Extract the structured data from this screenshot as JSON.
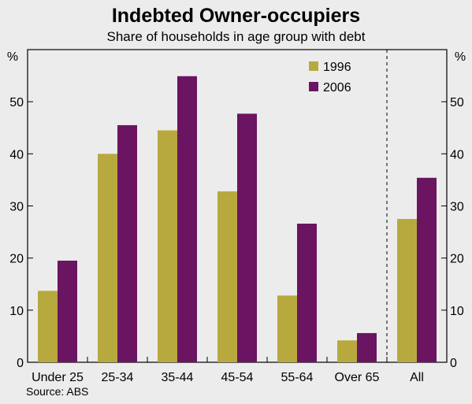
{
  "chart_data": {
    "type": "bar",
    "title": "Indebted Owner-occupiers",
    "subtitle": "Share of households in age group with debt",
    "y_unit_left": "%",
    "y_unit_right": "%",
    "ylim": [
      0,
      60
    ],
    "yticks": [
      0,
      10,
      20,
      30,
      40,
      50
    ],
    "categories": [
      "Under 25",
      "25-34",
      "35-44",
      "45-54",
      "55-64",
      "Over 65",
      "All"
    ],
    "series": [
      {
        "name": "1996",
        "color": "#b8a93f",
        "values": [
          13.7,
          40.0,
          44.5,
          32.8,
          12.8,
          4.2,
          27.5
        ]
      },
      {
        "name": "2006",
        "color": "#6b1462",
        "values": [
          19.5,
          45.5,
          54.9,
          47.7,
          26.6,
          5.6,
          35.4
        ]
      }
    ],
    "legend_position": "top-right",
    "divider_before_category": "All",
    "source": "Source: ABS"
  }
}
